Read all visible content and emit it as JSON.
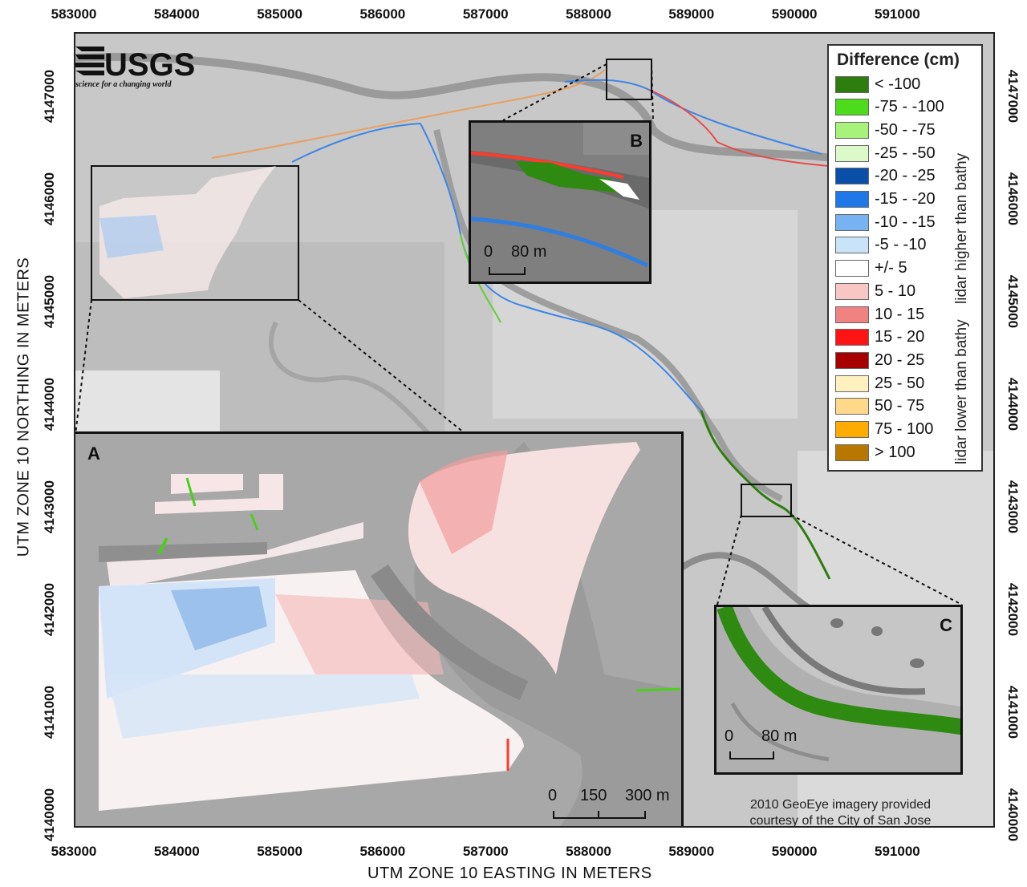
{
  "axes": {
    "x_title": "UTM ZONE 10 EASTING IN METERS",
    "y_title": "UTM ZONE 10 NORTHING IN METERS",
    "x_ticks": [
      "583000",
      "584000",
      "585000",
      "586000",
      "587000",
      "588000",
      "589000",
      "590000",
      "591000"
    ],
    "y_ticks": [
      "4147000",
      "4146000",
      "4145000",
      "4144000",
      "4143000",
      "4142000",
      "4141000",
      "4140000"
    ]
  },
  "logo": {
    "text": "USGS",
    "tagline": "science for a changing world"
  },
  "legend": {
    "title": "Difference (cm)",
    "items": [
      {
        "label": "< -100",
        "color": "#2e7d0f"
      },
      {
        "label": "-75 - -100",
        "color": "#4ddc1b"
      },
      {
        "label": "-50 - -75",
        "color": "#a6f27a"
      },
      {
        "label": "-25 - -50",
        "color": "#dcf9c9"
      },
      {
        "label": "-20 - -25",
        "color": "#0a4fa8"
      },
      {
        "label": "-15 - -20",
        "color": "#1e78e8"
      },
      {
        "label": "-10 - -15",
        "color": "#77b2f2"
      },
      {
        "label": "-5 - -10",
        "color": "#c9e3f9"
      },
      {
        "label": "+/- 5",
        "color": "#ffffff"
      },
      {
        "label": "5 - 10",
        "color": "#f9c6c6"
      },
      {
        "label": "10 - 15",
        "color": "#f08282"
      },
      {
        "label": "15 - 20",
        "color": "#ff1414"
      },
      {
        "label": "20 - 25",
        "color": "#a80000"
      },
      {
        "label": "25 - 50",
        "color": "#fff0bf"
      },
      {
        "label": "50 - 75",
        "color": "#ffd98a"
      },
      {
        "label": "75 - 100",
        "color": "#ffab00"
      },
      {
        "label": "> 100",
        "color": "#b87800"
      }
    ],
    "note_higher": "lidar higher than bathy",
    "note_lower": "lidar lower than bathy"
  },
  "insets": {
    "a": {
      "letter": "A",
      "scale": [
        "0",
        "150",
        "300 m"
      ]
    },
    "b": {
      "letter": "B",
      "scale": [
        "0",
        "80 m"
      ]
    },
    "c": {
      "letter": "C",
      "scale": [
        "0",
        "80 m"
      ]
    }
  },
  "credit": [
    "2010 GeoEye imagery provided",
    "courtesy of the City of San Jose"
  ]
}
